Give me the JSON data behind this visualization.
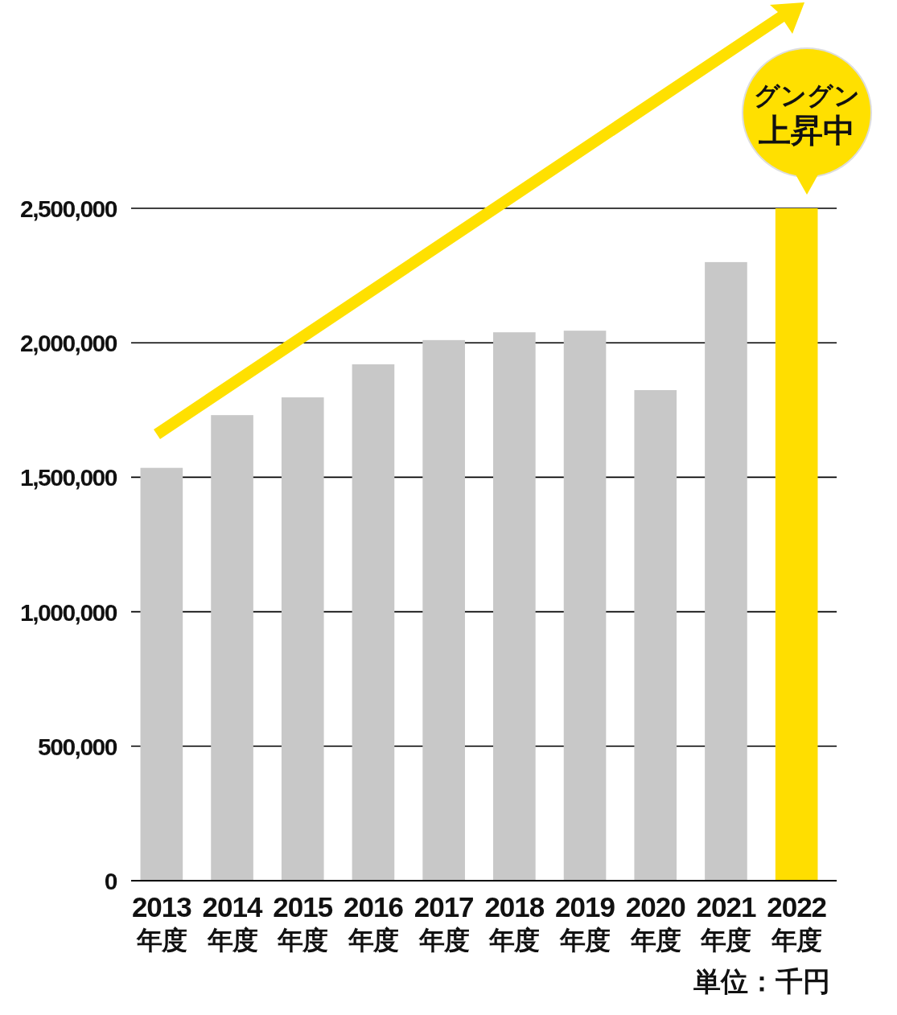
{
  "chart_data": {
    "type": "bar",
    "categories": [
      "2013\n年度",
      "2014\n年度",
      "2015\n年度",
      "2016\n年度",
      "2017\n年度",
      "2018\n年度",
      "2019\n年度",
      "2020\n年度",
      "2021\n年度",
      "2022\n年度"
    ],
    "values": [
      1535000,
      1731000,
      1797000,
      1920000,
      2010000,
      2039000,
      2045000,
      1824000,
      2300000,
      2500000
    ],
    "colors": [
      "#c8c8c8",
      "#c8c8c8",
      "#c8c8c8",
      "#c8c8c8",
      "#c8c8c8",
      "#c8c8c8",
      "#c8c8c8",
      "#c8c8c8",
      "#c8c8c8",
      "#ffde00"
    ],
    "ylim": [
      0,
      2500000
    ],
    "yticks": [
      {
        "value": 0,
        "label": "0"
      },
      {
        "value": 500000,
        "label": "500,000"
      },
      {
        "value": 1000000,
        "label": "1,000,000"
      },
      {
        "value": 1500000,
        "label": "1,500,000"
      },
      {
        "value": 2000000,
        "label": "2,000,000"
      },
      {
        "value": 2500000,
        "label": "2,500,000"
      }
    ],
    "grid": "y",
    "annotations": [
      "グングン",
      "上昇中",
      "単位：千円"
    ]
  }
}
